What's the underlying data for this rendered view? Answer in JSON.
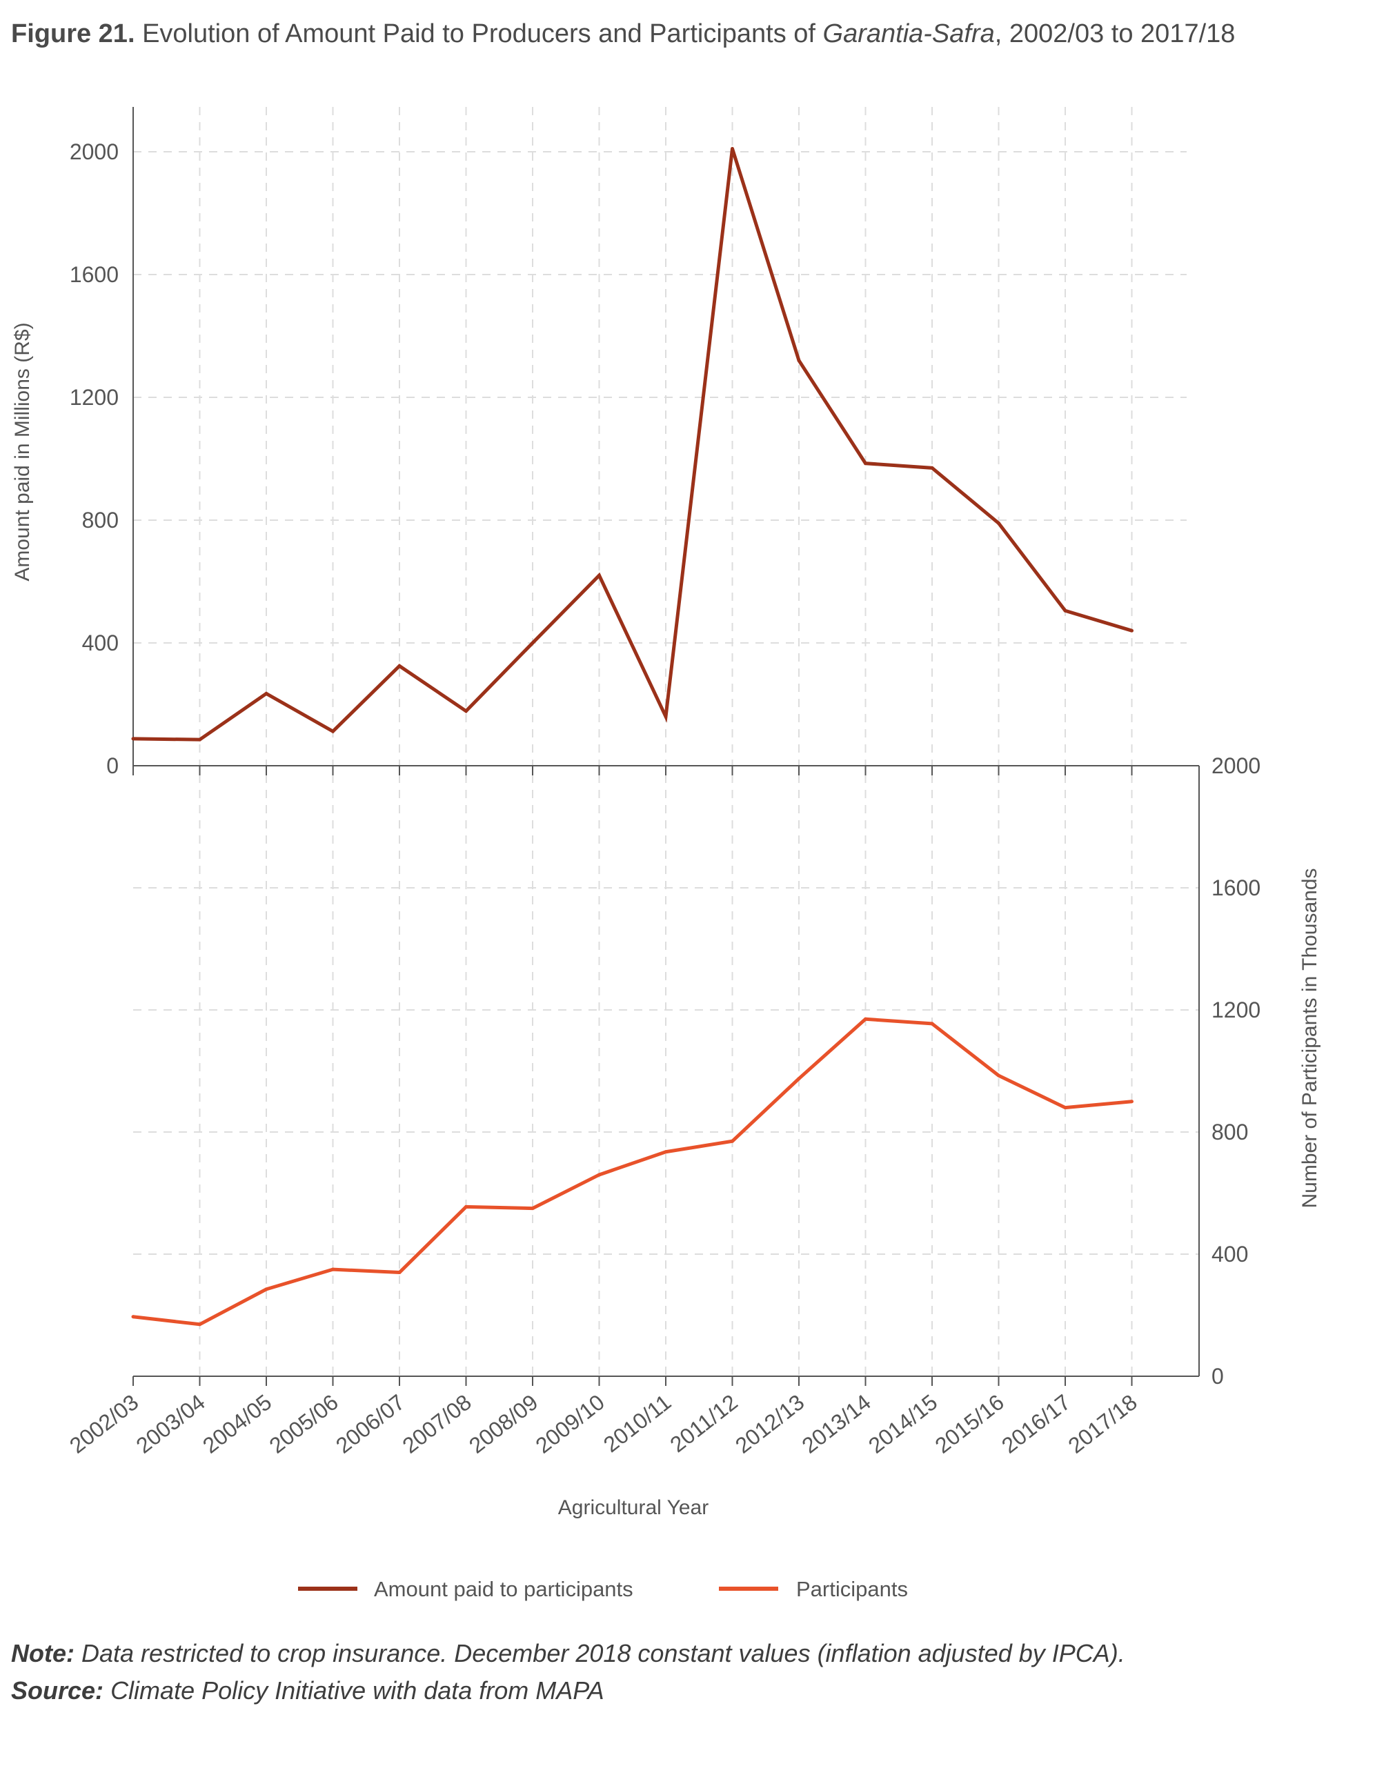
{
  "header": {
    "figure_label": "Figure 21.",
    "title_pre": "Evolution of Amount Paid to Producers and Participants of ",
    "title_italic": "Garantia-Safra",
    "title_post": ", 2002/03 to 2017/18"
  },
  "footer": {
    "note_label": "Note:",
    "note_text": "Data restricted to crop insurance. December 2018 constant values (inflation adjusted by IPCA).",
    "source_label": "Source:",
    "source_text": "Climate Policy Initiative with data from MAPA"
  },
  "colors": {
    "amount": "#9b3119",
    "participants": "#e8522a",
    "axis": "#555555",
    "grid": "#dddddd"
  },
  "chart_data": [
    {
      "type": "line",
      "categories": [
        "2002/03",
        "2003/04",
        "2004/05",
        "2005/06",
        "2006/07",
        "2007/08",
        "2008/09",
        "2009/10",
        "2010/11",
        "2011/12",
        "2012/13",
        "2013/14",
        "2014/15",
        "2015/16",
        "2016/17",
        "2017/18"
      ],
      "series": [
        {
          "name": "Amount paid to participants",
          "values": [
            88,
            85,
            235,
            112,
            325,
            178,
            400,
            620,
            160,
            2010,
            1320,
            985,
            970,
            790,
            505,
            440
          ]
        }
      ],
      "ylabel": "Amount paid in Millions (R$)",
      "ylim": [
        0,
        2160
      ],
      "yticks": [
        0,
        400,
        800,
        1200,
        1600,
        2000
      ],
      "grid": true
    },
    {
      "type": "line",
      "categories": [
        "2002/03",
        "2003/04",
        "2004/05",
        "2005/06",
        "2006/07",
        "2007/08",
        "2008/09",
        "2009/10",
        "2010/11",
        "2011/12",
        "2012/13",
        "2013/14",
        "2014/15",
        "2015/16",
        "2016/17",
        "2017/18"
      ],
      "series": [
        {
          "name": "Participants",
          "values": [
            195,
            170,
            285,
            350,
            340,
            555,
            550,
            660,
            735,
            770,
            975,
            1170,
            1155,
            985,
            880,
            900
          ]
        }
      ],
      "xlabel": "Agricultural Year",
      "ylabel": "Number of Participants in Thousands",
      "ylim": [
        0,
        2000
      ],
      "yticks": [
        0,
        400,
        800,
        1200,
        1600,
        2000
      ],
      "grid": true
    }
  ]
}
